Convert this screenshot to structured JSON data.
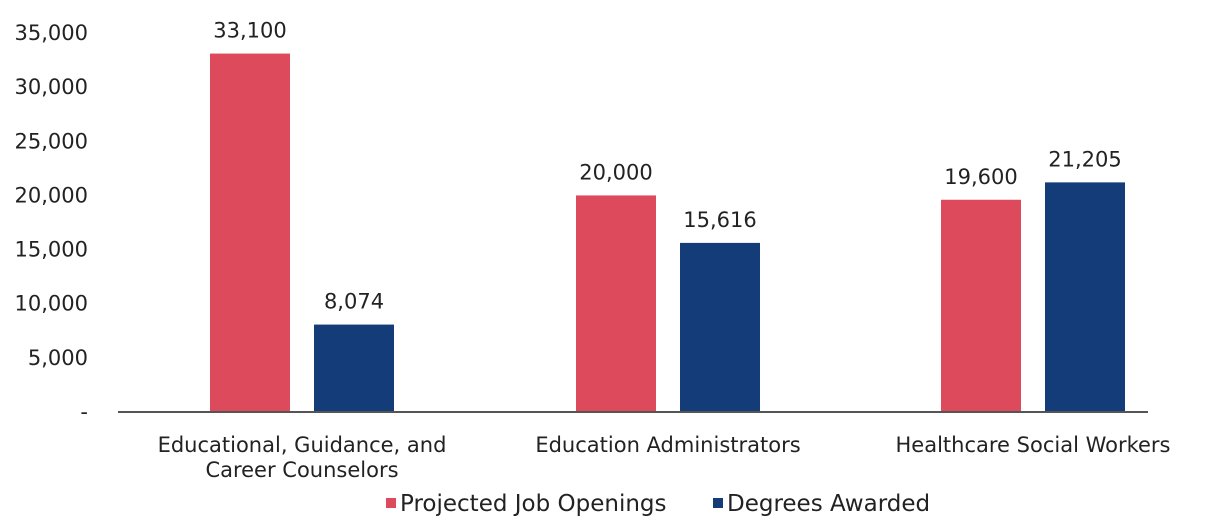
{
  "chart_data": {
    "type": "bar",
    "categories": [
      [
        "Educational, Guidance, and",
        "Career Counselors"
      ],
      [
        "Education Administrators"
      ],
      [
        "Healthcare Social Workers"
      ]
    ],
    "series": [
      {
        "name": "Projected Job Openings",
        "color": "#dc4a5c",
        "values": [
          33100,
          20000,
          19600
        ],
        "labels": [
          "33,100",
          "20,000",
          "19,600"
        ]
      },
      {
        "name": "Degrees Awarded",
        "color": "#143c78",
        "values": [
          8074,
          15616,
          21205
        ],
        "labels": [
          "8,074",
          "15,616",
          "21,205"
        ]
      }
    ],
    "y_ticks": [
      {
        "value": 0,
        "label": "-"
      },
      {
        "value": 5000,
        "label": "5,000"
      },
      {
        "value": 10000,
        "label": "10,000"
      },
      {
        "value": 15000,
        "label": "15,000"
      },
      {
        "value": 20000,
        "label": "20,000"
      },
      {
        "value": 25000,
        "label": "25,000"
      },
      {
        "value": 30000,
        "label": "30,000"
      },
      {
        "value": 35000,
        "label": "35,000"
      }
    ],
    "ylim": [
      0,
      35000
    ],
    "grid": false,
    "legend_position": "bottom"
  }
}
